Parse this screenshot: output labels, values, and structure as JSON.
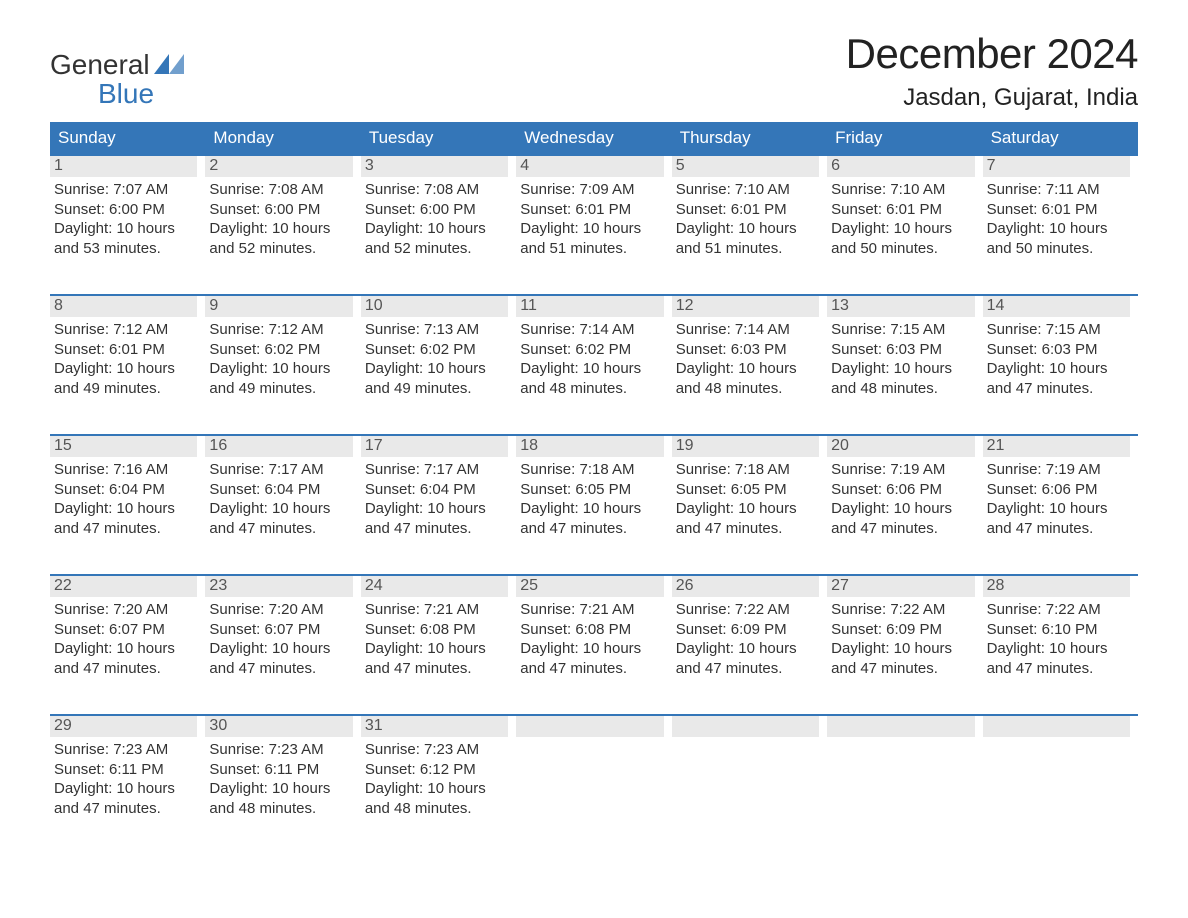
{
  "logo": {
    "text_general": "General",
    "text_blue": "Blue",
    "icon_color": "#3476b8"
  },
  "header": {
    "month_title": "December 2024",
    "location": "Jasdan, Gujarat, India"
  },
  "styling": {
    "header_bg": "#3476b8",
    "header_text": "#ffffff",
    "daynum_bg": "#e9e9e9",
    "border_color": "#3476b8",
    "body_bg": "#ffffff",
    "text_color": "#333333",
    "title_fontsize": 42,
    "location_fontsize": 24,
    "weekday_fontsize": 17,
    "body_fontsize": 15
  },
  "weekdays": [
    "Sunday",
    "Monday",
    "Tuesday",
    "Wednesday",
    "Thursday",
    "Friday",
    "Saturday"
  ],
  "weeks": [
    [
      {
        "day": "1",
        "sunrise": "Sunrise: 7:07 AM",
        "sunset": "Sunset: 6:00 PM",
        "daylight1": "Daylight: 10 hours",
        "daylight2": "and 53 minutes."
      },
      {
        "day": "2",
        "sunrise": "Sunrise: 7:08 AM",
        "sunset": "Sunset: 6:00 PM",
        "daylight1": "Daylight: 10 hours",
        "daylight2": "and 52 minutes."
      },
      {
        "day": "3",
        "sunrise": "Sunrise: 7:08 AM",
        "sunset": "Sunset: 6:00 PM",
        "daylight1": "Daylight: 10 hours",
        "daylight2": "and 52 minutes."
      },
      {
        "day": "4",
        "sunrise": "Sunrise: 7:09 AM",
        "sunset": "Sunset: 6:01 PM",
        "daylight1": "Daylight: 10 hours",
        "daylight2": "and 51 minutes."
      },
      {
        "day": "5",
        "sunrise": "Sunrise: 7:10 AM",
        "sunset": "Sunset: 6:01 PM",
        "daylight1": "Daylight: 10 hours",
        "daylight2": "and 51 minutes."
      },
      {
        "day": "6",
        "sunrise": "Sunrise: 7:10 AM",
        "sunset": "Sunset: 6:01 PM",
        "daylight1": "Daylight: 10 hours",
        "daylight2": "and 50 minutes."
      },
      {
        "day": "7",
        "sunrise": "Sunrise: 7:11 AM",
        "sunset": "Sunset: 6:01 PM",
        "daylight1": "Daylight: 10 hours",
        "daylight2": "and 50 minutes."
      }
    ],
    [
      {
        "day": "8",
        "sunrise": "Sunrise: 7:12 AM",
        "sunset": "Sunset: 6:01 PM",
        "daylight1": "Daylight: 10 hours",
        "daylight2": "and 49 minutes."
      },
      {
        "day": "9",
        "sunrise": "Sunrise: 7:12 AM",
        "sunset": "Sunset: 6:02 PM",
        "daylight1": "Daylight: 10 hours",
        "daylight2": "and 49 minutes."
      },
      {
        "day": "10",
        "sunrise": "Sunrise: 7:13 AM",
        "sunset": "Sunset: 6:02 PM",
        "daylight1": "Daylight: 10 hours",
        "daylight2": "and 49 minutes."
      },
      {
        "day": "11",
        "sunrise": "Sunrise: 7:14 AM",
        "sunset": "Sunset: 6:02 PM",
        "daylight1": "Daylight: 10 hours",
        "daylight2": "and 48 minutes."
      },
      {
        "day": "12",
        "sunrise": "Sunrise: 7:14 AM",
        "sunset": "Sunset: 6:03 PM",
        "daylight1": "Daylight: 10 hours",
        "daylight2": "and 48 minutes."
      },
      {
        "day": "13",
        "sunrise": "Sunrise: 7:15 AM",
        "sunset": "Sunset: 6:03 PM",
        "daylight1": "Daylight: 10 hours",
        "daylight2": "and 48 minutes."
      },
      {
        "day": "14",
        "sunrise": "Sunrise: 7:15 AM",
        "sunset": "Sunset: 6:03 PM",
        "daylight1": "Daylight: 10 hours",
        "daylight2": "and 47 minutes."
      }
    ],
    [
      {
        "day": "15",
        "sunrise": "Sunrise: 7:16 AM",
        "sunset": "Sunset: 6:04 PM",
        "daylight1": "Daylight: 10 hours",
        "daylight2": "and 47 minutes."
      },
      {
        "day": "16",
        "sunrise": "Sunrise: 7:17 AM",
        "sunset": "Sunset: 6:04 PM",
        "daylight1": "Daylight: 10 hours",
        "daylight2": "and 47 minutes."
      },
      {
        "day": "17",
        "sunrise": "Sunrise: 7:17 AM",
        "sunset": "Sunset: 6:04 PM",
        "daylight1": "Daylight: 10 hours",
        "daylight2": "and 47 minutes."
      },
      {
        "day": "18",
        "sunrise": "Sunrise: 7:18 AM",
        "sunset": "Sunset: 6:05 PM",
        "daylight1": "Daylight: 10 hours",
        "daylight2": "and 47 minutes."
      },
      {
        "day": "19",
        "sunrise": "Sunrise: 7:18 AM",
        "sunset": "Sunset: 6:05 PM",
        "daylight1": "Daylight: 10 hours",
        "daylight2": "and 47 minutes."
      },
      {
        "day": "20",
        "sunrise": "Sunrise: 7:19 AM",
        "sunset": "Sunset: 6:06 PM",
        "daylight1": "Daylight: 10 hours",
        "daylight2": "and 47 minutes."
      },
      {
        "day": "21",
        "sunrise": "Sunrise: 7:19 AM",
        "sunset": "Sunset: 6:06 PM",
        "daylight1": "Daylight: 10 hours",
        "daylight2": "and 47 minutes."
      }
    ],
    [
      {
        "day": "22",
        "sunrise": "Sunrise: 7:20 AM",
        "sunset": "Sunset: 6:07 PM",
        "daylight1": "Daylight: 10 hours",
        "daylight2": "and 47 minutes."
      },
      {
        "day": "23",
        "sunrise": "Sunrise: 7:20 AM",
        "sunset": "Sunset: 6:07 PM",
        "daylight1": "Daylight: 10 hours",
        "daylight2": "and 47 minutes."
      },
      {
        "day": "24",
        "sunrise": "Sunrise: 7:21 AM",
        "sunset": "Sunset: 6:08 PM",
        "daylight1": "Daylight: 10 hours",
        "daylight2": "and 47 minutes."
      },
      {
        "day": "25",
        "sunrise": "Sunrise: 7:21 AM",
        "sunset": "Sunset: 6:08 PM",
        "daylight1": "Daylight: 10 hours",
        "daylight2": "and 47 minutes."
      },
      {
        "day": "26",
        "sunrise": "Sunrise: 7:22 AM",
        "sunset": "Sunset: 6:09 PM",
        "daylight1": "Daylight: 10 hours",
        "daylight2": "and 47 minutes."
      },
      {
        "day": "27",
        "sunrise": "Sunrise: 7:22 AM",
        "sunset": "Sunset: 6:09 PM",
        "daylight1": "Daylight: 10 hours",
        "daylight2": "and 47 minutes."
      },
      {
        "day": "28",
        "sunrise": "Sunrise: 7:22 AM",
        "sunset": "Sunset: 6:10 PM",
        "daylight1": "Daylight: 10 hours",
        "daylight2": "and 47 minutes."
      }
    ],
    [
      {
        "day": "29",
        "sunrise": "Sunrise: 7:23 AM",
        "sunset": "Sunset: 6:11 PM",
        "daylight1": "Daylight: 10 hours",
        "daylight2": "and 47 minutes."
      },
      {
        "day": "30",
        "sunrise": "Sunrise: 7:23 AM",
        "sunset": "Sunset: 6:11 PM",
        "daylight1": "Daylight: 10 hours",
        "daylight2": "and 48 minutes."
      },
      {
        "day": "31",
        "sunrise": "Sunrise: 7:23 AM",
        "sunset": "Sunset: 6:12 PM",
        "daylight1": "Daylight: 10 hours",
        "daylight2": "and 48 minutes."
      },
      {
        "empty": true
      },
      {
        "empty": true
      },
      {
        "empty": true
      },
      {
        "empty": true
      }
    ]
  ]
}
